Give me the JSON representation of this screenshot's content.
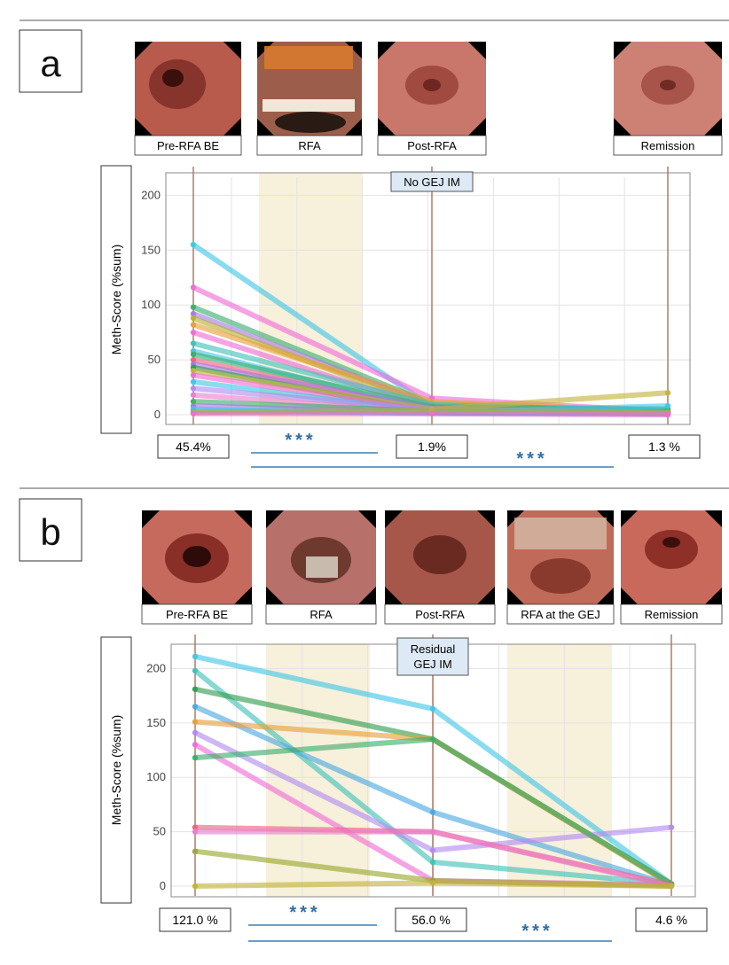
{
  "chart_data": [
    {
      "type": "line",
      "panel_label": "a",
      "ylabel": "Meth-Score (%sum)",
      "ylim": [
        0,
        210
      ],
      "yticks": [
        0,
        50,
        100,
        150,
        200
      ],
      "stages": [
        "Pre-RFA BE",
        "RFA",
        "Post-RFA",
        "Remission"
      ],
      "tag": "No GEJ IM",
      "summary": [
        "45.4%",
        "1.9%",
        "1.3 %"
      ],
      "significance": [
        "***",
        "***"
      ],
      "series": [
        {
          "values": [
            155,
            7,
            5
          ],
          "color": "#40c6e6"
        },
        {
          "values": [
            116,
            15,
            3
          ],
          "color": "#f06ad6"
        },
        {
          "values": [
            98,
            10,
            2
          ],
          "color": "#3aae6b"
        },
        {
          "values": [
            92,
            8,
            3
          ],
          "color": "#a779e9"
        },
        {
          "values": [
            88,
            6,
            2
          ],
          "color": "#b9b22e"
        },
        {
          "values": [
            82,
            12,
            3
          ],
          "color": "#e7a03a"
        },
        {
          "values": [
            75,
            5,
            2
          ],
          "color": "#f06ad6"
        },
        {
          "values": [
            65,
            9,
            3
          ],
          "color": "#3fc2b8"
        },
        {
          "values": [
            58,
            4,
            2
          ],
          "color": "#40c6e6"
        },
        {
          "values": [
            55,
            7,
            5
          ],
          "color": "#3aae6b"
        },
        {
          "values": [
            50,
            3,
            1
          ],
          "color": "#f06080"
        },
        {
          "values": [
            46,
            6,
            2
          ],
          "color": "#a779e9"
        },
        {
          "values": [
            43,
            2,
            1
          ],
          "color": "#2f9d4e"
        },
        {
          "values": [
            40,
            5,
            20
          ],
          "color": "#c2b33c"
        },
        {
          "values": [
            36,
            3,
            1
          ],
          "color": "#f06ad6"
        },
        {
          "values": [
            30,
            2,
            8
          ],
          "color": "#40c6e6"
        },
        {
          "values": [
            24,
            4,
            2
          ],
          "color": "#b28af0"
        },
        {
          "values": [
            18,
            2,
            1
          ],
          "color": "#e87fd0"
        },
        {
          "values": [
            12,
            3,
            2
          ],
          "color": "#3aae6b"
        },
        {
          "values": [
            8,
            2,
            1
          ],
          "color": "#a779e9"
        },
        {
          "values": [
            5,
            1,
            1
          ],
          "color": "#40c6e6"
        },
        {
          "values": [
            3,
            2,
            1
          ],
          "color": "#3fc2b8"
        },
        {
          "values": [
            2,
            4,
            2
          ],
          "color": "#b9b22e"
        },
        {
          "values": [
            1,
            1,
            0
          ],
          "color": "#f06ad6"
        }
      ]
    },
    {
      "type": "line",
      "panel_label": "b",
      "ylabel": "Meth-Score (%sum)",
      "ylim": [
        0,
        215
      ],
      "yticks": [
        0,
        50,
        100,
        150,
        200
      ],
      "stages": [
        "Pre-RFA BE",
        "RFA",
        "Post-RFA",
        "RFA at the GEJ",
        "Remission"
      ],
      "tag": "Residual GEJ IM",
      "summary": [
        "121.0 %",
        "56.0 %",
        "4.6 %"
      ],
      "significance": [
        "***",
        "***"
      ],
      "series": [
        {
          "values": [
            211,
            163,
            2
          ],
          "color": "#40c6e6"
        },
        {
          "values": [
            198,
            22,
            2
          ],
          "color": "#3fc2b8"
        },
        {
          "values": [
            181,
            135,
            2
          ],
          "color": "#2f9d4e"
        },
        {
          "values": [
            165,
            68,
            1
          ],
          "color": "#4aa8e0"
        },
        {
          "values": [
            151,
            135,
            1
          ],
          "color": "#e7a03a"
        },
        {
          "values": [
            141,
            33,
            54
          ],
          "color": "#b28af0"
        },
        {
          "values": [
            130,
            5,
            1
          ],
          "color": "#f06ad6"
        },
        {
          "values": [
            118,
            135,
            2
          ],
          "color": "#3aae6b"
        },
        {
          "values": [
            54,
            50,
            1
          ],
          "color": "#f06080"
        },
        {
          "values": [
            50,
            50,
            0
          ],
          "color": "#e87fd0"
        },
        {
          "values": [
            32,
            5,
            0
          ],
          "color": "#9aa62c"
        },
        {
          "values": [
            0,
            3,
            0
          ],
          "color": "#c2b33c"
        }
      ]
    }
  ]
}
